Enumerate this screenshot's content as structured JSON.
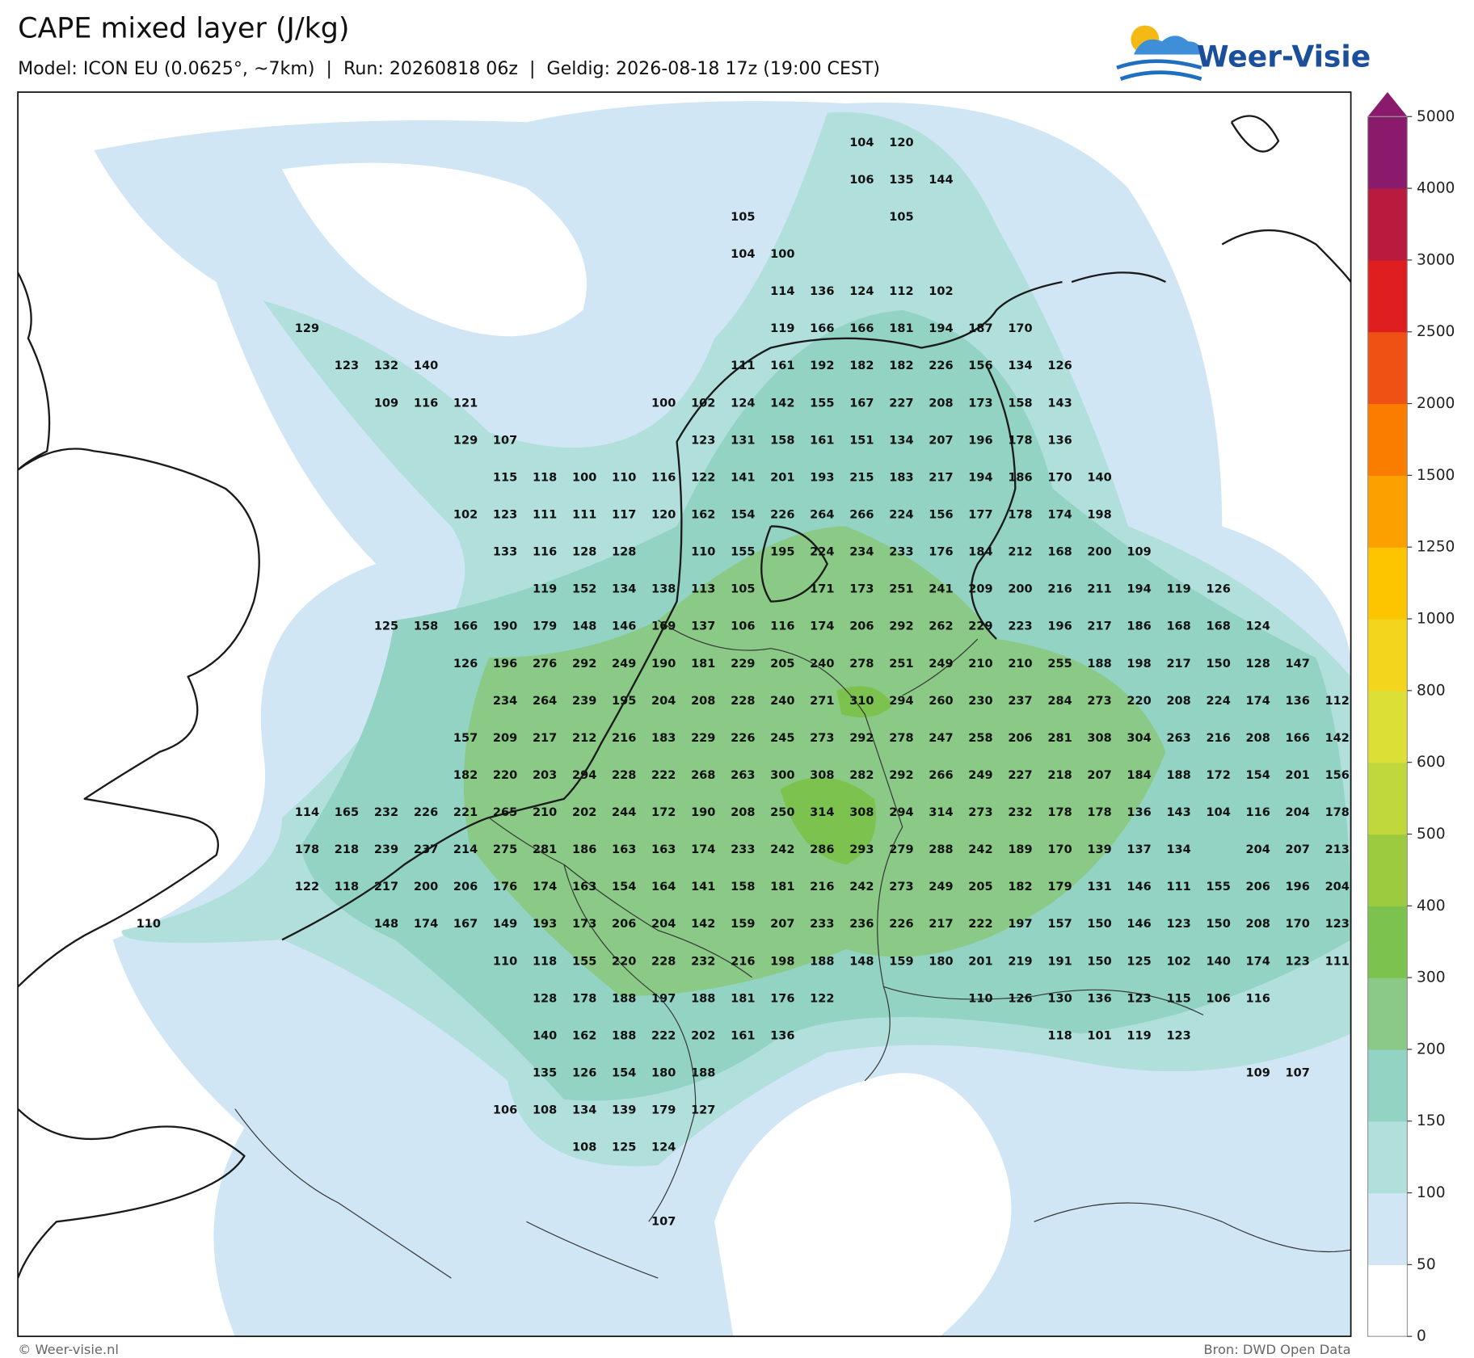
{
  "header": {
    "title": "CAPE mixed layer (J/kg)",
    "subtitle": "Model: ICON EU (0.0625°, ~7km)  |  Run: 20260818 06z  |  Geldig: 2026-08-18 17z (19:00 CEST)",
    "logo": "Weer-Visie"
  },
  "map": {
    "labels": [
      [
        null,
        null,
        null,
        null,
        null,
        null,
        null,
        null,
        null,
        null,
        null,
        null,
        null,
        null,
        null,
        null,
        null,
        null,
        104,
        120
      ],
      [
        null,
        null,
        null,
        null,
        null,
        null,
        null,
        null,
        null,
        null,
        null,
        null,
        null,
        null,
        null,
        null,
        null,
        null,
        106,
        135,
        144
      ],
      [
        null,
        null,
        null,
        null,
        null,
        null,
        null,
        null,
        null,
        null,
        null,
        null,
        null,
        null,
        null,
        105,
        null,
        null,
        null,
        105
      ],
      [
        null,
        null,
        null,
        null,
        null,
        null,
        null,
        null,
        null,
        null,
        null,
        null,
        null,
        null,
        null,
        104,
        100
      ],
      [
        null,
        null,
        null,
        null,
        null,
        null,
        null,
        null,
        null,
        null,
        null,
        null,
        null,
        null,
        null,
        null,
        114,
        136,
        124,
        112,
        102
      ],
      [
        null,
        null,
        null,
        null,
        129,
        null,
        null,
        null,
        null,
        null,
        null,
        null,
        null,
        null,
        null,
        null,
        119,
        166,
        166,
        181,
        194,
        187,
        170
      ],
      [
        null,
        null,
        null,
        null,
        null,
        123,
        132,
        140,
        null,
        null,
        null,
        null,
        null,
        null,
        null,
        111,
        161,
        192,
        182,
        182,
        226,
        156,
        134,
        126
      ],
      [
        null,
        null,
        null,
        null,
        null,
        null,
        109,
        116,
        121,
        null,
        null,
        null,
        null,
        100,
        102,
        124,
        142,
        155,
        167,
        227,
        208,
        173,
        158,
        143
      ],
      [
        null,
        null,
        null,
        null,
        null,
        null,
        null,
        null,
        129,
        107,
        null,
        null,
        null,
        null,
        123,
        131,
        158,
        161,
        151,
        134,
        207,
        196,
        178,
        136
      ],
      [
        null,
        null,
        null,
        null,
        null,
        null,
        null,
        null,
        null,
        115,
        118,
        100,
        110,
        116,
        122,
        141,
        201,
        193,
        215,
        183,
        217,
        194,
        186,
        170,
        140
      ],
      [
        null,
        null,
        null,
        null,
        null,
        null,
        null,
        null,
        102,
        123,
        111,
        111,
        117,
        120,
        162,
        154,
        226,
        264,
        266,
        224,
        156,
        177,
        178,
        174,
        198
      ],
      [
        null,
        null,
        null,
        null,
        null,
        null,
        null,
        null,
        null,
        133,
        116,
        128,
        128,
        null,
        110,
        155,
        195,
        224,
        234,
        233,
        176,
        184,
        212,
        168,
        200,
        109
      ],
      [
        null,
        null,
        null,
        null,
        null,
        null,
        null,
        null,
        null,
        null,
        119,
        152,
        134,
        138,
        113,
        105,
        null,
        171,
        173,
        251,
        241,
        209,
        200,
        216,
        211,
        194,
        119,
        126
      ],
      [
        null,
        null,
        null,
        null,
        null,
        null,
        125,
        158,
        166,
        190,
        179,
        148,
        146,
        169,
        137,
        106,
        116,
        174,
        206,
        292,
        262,
        229,
        223,
        196,
        217,
        186,
        168,
        168,
        124
      ],
      [
        null,
        null,
        null,
        null,
        null,
        null,
        null,
        null,
        126,
        196,
        276,
        292,
        249,
        190,
        181,
        229,
        205,
        240,
        278,
        251,
        249,
        210,
        210,
        255,
        188,
        198,
        217,
        150,
        128,
        147
      ],
      [
        null,
        null,
        null,
        null,
        null,
        null,
        null,
        null,
        null,
        234,
        264,
        239,
        195,
        204,
        208,
        228,
        240,
        271,
        310,
        294,
        260,
        230,
        237,
        284,
        273,
        220,
        208,
        224,
        174,
        136,
        112
      ],
      [
        null,
        null,
        null,
        null,
        null,
        null,
        null,
        null,
        157,
        209,
        217,
        212,
        216,
        183,
        229,
        226,
        245,
        273,
        292,
        278,
        247,
        258,
        206,
        281,
        308,
        304,
        263,
        216,
        208,
        166,
        142
      ],
      [
        null,
        null,
        null,
        null,
        null,
        null,
        null,
        null,
        182,
        220,
        203,
        294,
        228,
        222,
        268,
        263,
        300,
        308,
        282,
        292,
        266,
        249,
        227,
        218,
        207,
        184,
        188,
        172,
        154,
        201,
        156
      ],
      [
        null,
        null,
        null,
        null,
        114,
        165,
        232,
        226,
        221,
        265,
        210,
        202,
        244,
        172,
        190,
        208,
        250,
        314,
        308,
        294,
        314,
        273,
        232,
        178,
        178,
        136,
        143,
        104,
        116,
        204,
        178
      ],
      [
        null,
        null,
        null,
        null,
        178,
        218,
        239,
        237,
        214,
        275,
        281,
        186,
        163,
        163,
        174,
        233,
        242,
        286,
        293,
        279,
        288,
        242,
        189,
        170,
        139,
        137,
        134,
        null,
        204,
        207,
        213
      ],
      [
        null,
        null,
        null,
        null,
        122,
        118,
        217,
        200,
        206,
        176,
        174,
        163,
        154,
        164,
        141,
        158,
        181,
        216,
        242,
        273,
        249,
        205,
        182,
        179,
        131,
        146,
        111,
        155,
        206,
        196,
        204
      ],
      [
        110,
        null,
        null,
        null,
        null,
        null,
        148,
        174,
        167,
        149,
        193,
        173,
        206,
        204,
        142,
        159,
        207,
        233,
        236,
        226,
        217,
        222,
        197,
        157,
        150,
        146,
        123,
        150,
        208,
        170,
        123
      ],
      [
        null,
        null,
        null,
        null,
        null,
        null,
        null,
        null,
        null,
        110,
        118,
        155,
        220,
        228,
        232,
        216,
        198,
        188,
        148,
        159,
        180,
        201,
        219,
        191,
        150,
        125,
        102,
        140,
        174,
        123,
        111
      ],
      [
        null,
        null,
        null,
        null,
        null,
        null,
        null,
        null,
        null,
        null,
        128,
        178,
        188,
        197,
        188,
        181,
        176,
        122,
        null,
        null,
        null,
        110,
        126,
        130,
        136,
        123,
        115,
        106,
        116
      ],
      [
        null,
        null,
        null,
        null,
        null,
        null,
        null,
        null,
        null,
        null,
        140,
        162,
        188,
        222,
        202,
        161,
        136,
        null,
        null,
        null,
        null,
        null,
        null,
        118,
        101,
        119,
        123
      ],
      [
        null,
        null,
        null,
        null,
        null,
        null,
        null,
        null,
        null,
        null,
        135,
        126,
        154,
        180,
        188,
        null,
        null,
        null,
        null,
        null,
        null,
        null,
        null,
        null,
        null,
        null,
        null,
        null,
        109,
        107
      ],
      [
        null,
        null,
        null,
        null,
        null,
        null,
        null,
        null,
        null,
        106,
        108,
        134,
        139,
        179,
        127
      ],
      [
        null,
        null,
        null,
        null,
        null,
        null,
        null,
        null,
        null,
        null,
        null,
        108,
        125,
        124
      ],
      [],
      [
        null,
        null,
        null,
        null,
        null,
        null,
        null,
        null,
        null,
        null,
        null,
        null,
        null,
        107
      ]
    ]
  },
  "colorbar": {
    "ticks": [
      0,
      50,
      100,
      150,
      200,
      300,
      400,
      500,
      600,
      800,
      1000,
      1250,
      1500,
      2000,
      2500,
      3000,
      4000,
      5000
    ],
    "colors": [
      "#ffffff",
      "#d0e6f4",
      "#b0dfdc",
      "#92d3c3",
      "#8ac986",
      "#7bc24e",
      "#9dcb3f",
      "#c1d83d",
      "#dcdf35",
      "#f2d51c",
      "#fdc400",
      "#fca000",
      "#fb7d00",
      "#ef5014",
      "#df1f1f",
      "#b91b3f",
      "#8a1a6c"
    ]
  },
  "footer": {
    "left": "© Weer-visie.nl",
    "right": "Bron: DWD Open Data"
  }
}
